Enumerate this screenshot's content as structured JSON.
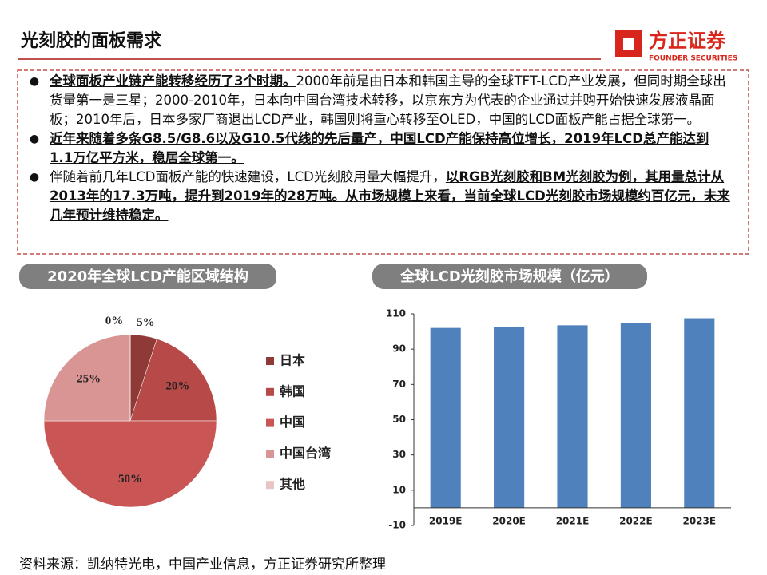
{
  "header": {
    "title": "光刻胶的面板需求",
    "logo": "方正证券",
    "logo_sub": "FOUNDER SECURITIES"
  },
  "bullets": [
    [
      {
        "text": "全球面板产业链产能转移经历了3个时期。",
        "emphasis": true
      },
      {
        "text": "2000年前是由日本和韩国主导的全球TFT-LCD产业发展，但同时期全球出货量第一是三星；2000-2010年，日本向中国台湾技术转移，以京东方为代表的企业通过并购开始快速发展液晶面板；2010年后，日本多家厂商退出LCD产业，韩国则将重心转移至OLED，中国的LCD面板产能占据全球第一。",
        "emphasis": false
      }
    ],
    [
      {
        "text": "近年来随着多条G8.5/G8.6以及G10.5代线的先后量产，中国LCD产能保持高位增长，2019年LCD总产能达到1.1万亿平方米，稳居全球第一。",
        "emphasis": true
      }
    ],
    [
      {
        "text": "伴随着前几年LCD面板产能的快速建设，LCD光刻胶用量大幅提升，",
        "emphasis": false
      },
      {
        "text": "以RGB光刻胶和BM光刻胶为例，其用量总计从2013年的17.3万吨，提升到2019年的28万吨。从市场规模上来看，当前全球LCD光刻胶市场规模约百亿元，未来几年预计维持稳定。",
        "emphasis": true
      }
    ]
  ],
  "chart_data": [
    {
      "type": "pie",
      "title": "2020年全球LCD产能区域结构",
      "categories": [
        "日本",
        "韩国",
        "中国",
        "中国台湾",
        "其他"
      ],
      "values": [
        5,
        20,
        50,
        25,
        0
      ],
      "value_labels": [
        "5%",
        "20%",
        "50%",
        "25%",
        "0%"
      ],
      "colors": [
        "#8e3b37",
        "#b74a48",
        "#c95655",
        "#d99593",
        "#e8c4c2"
      ]
    },
    {
      "type": "bar",
      "title": "全球LCD光刻胶市场规模（亿元）",
      "categories": [
        "2019E",
        "2020E",
        "2021E",
        "2022E",
        "2023E"
      ],
      "values": [
        102,
        102.5,
        103.5,
        105,
        107.5
      ],
      "color": "#4f81bd",
      "ylim": [
        -10,
        110
      ],
      "yticks": [
        -10,
        10,
        30,
        50,
        70,
        90,
        110
      ]
    }
  ],
  "footer": "资料来源：凯纳特光电，中国产业信息，方正证券研究所整理"
}
